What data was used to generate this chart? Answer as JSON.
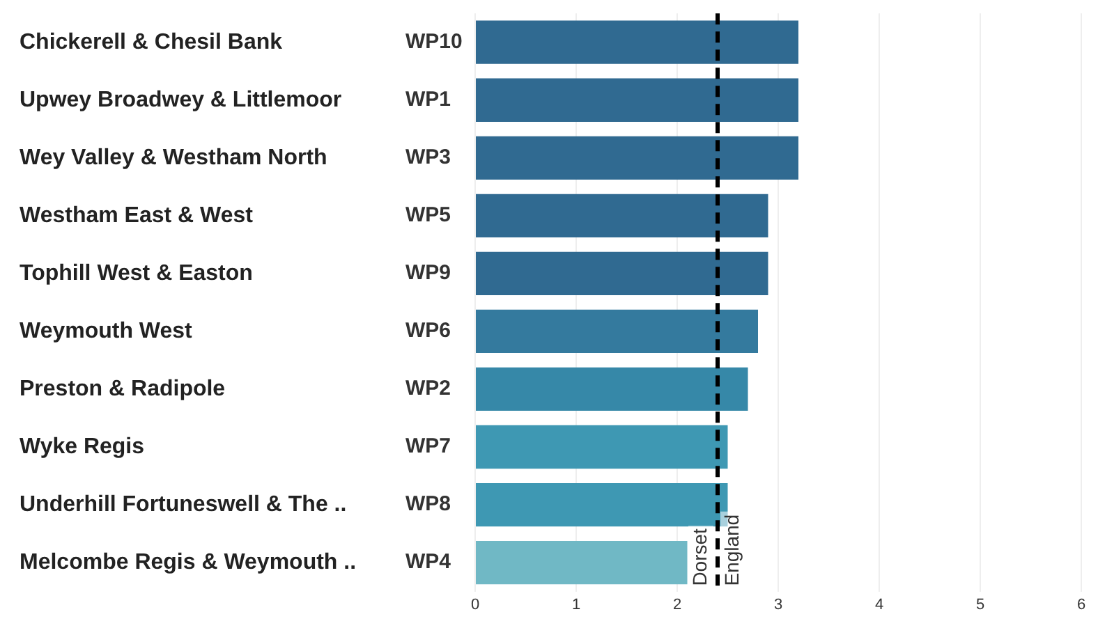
{
  "chart_data": {
    "type": "bar",
    "orientation": "horizontal",
    "categories": [
      "Chickerell & Chesil Bank",
      "Upwey Broadwey & Littlemoor",
      "Wey Valley & Westham North",
      "Westham East & West",
      "Tophill West & Easton",
      "Weymouth West",
      "Preston & Radipole",
      "Wyke Regis",
      "Underhill Fortuneswell & The ..",
      "Melcombe Regis & Weymouth .."
    ],
    "y2_categories": [
      "WP10",
      "WP1",
      "WP3",
      "WP5",
      "WP9",
      "WP6",
      "WP2",
      "WP7",
      "WP8",
      "WP4"
    ],
    "values": [
      3.2,
      3.2,
      3.2,
      2.9,
      2.9,
      2.8,
      2.7,
      2.5,
      2.5,
      2.1
    ],
    "colors": [
      "#306a91",
      "#306a91",
      "#306a91",
      "#306a91",
      "#306a91",
      "#347a9e",
      "#3688a8",
      "#3e98b3",
      "#3e98b3",
      "#70b8c5"
    ],
    "xlim": [
      0,
      6
    ],
    "xticks": [
      0,
      1,
      2,
      3,
      4,
      5,
      6
    ],
    "grid": "x",
    "ref_lines": [
      {
        "axis": "x",
        "value": 2.4,
        "label": "Dorset",
        "color": "#000000",
        "line_style": "dashed"
      }
    ],
    "annotations": [
      {
        "text": "England",
        "x": 2.4
      }
    ]
  }
}
